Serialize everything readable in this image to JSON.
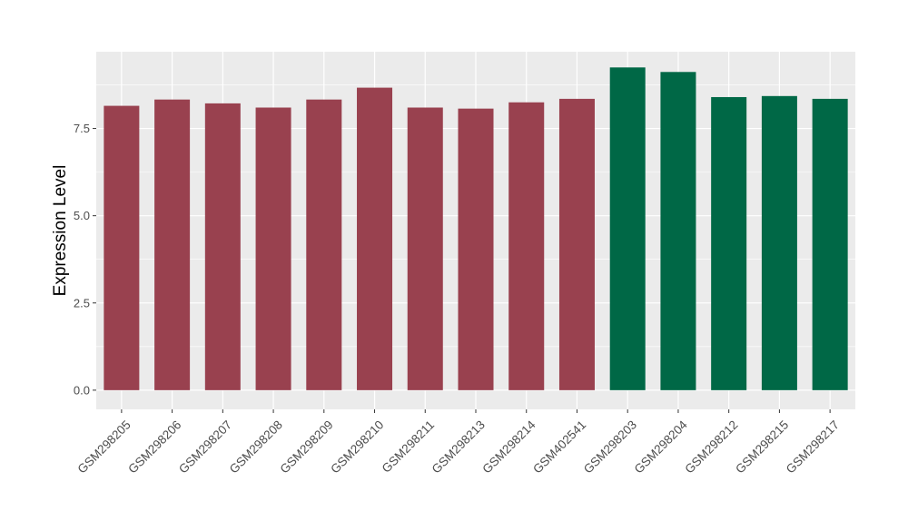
{
  "chart_data": {
    "type": "bar",
    "title": "",
    "xlabel": "",
    "ylabel": "Expression Level",
    "ylim": [
      -0.55,
      9.7
    ],
    "y_ticks": [
      0.0,
      2.5,
      5.0,
      7.5
    ],
    "y_tick_labels": [
      "0.0",
      "2.5",
      "5.0",
      "7.5"
    ],
    "grid": true,
    "legend": "none",
    "categories": [
      "GSM298205",
      "GSM298206",
      "GSM298207",
      "GSM298208",
      "GSM298209",
      "GSM298210",
      "GSM298211",
      "GSM298213",
      "GSM298214",
      "GSM402541",
      "GSM298203",
      "GSM298204",
      "GSM298212",
      "GSM298215",
      "GSM298217"
    ],
    "values": [
      8.15,
      8.33,
      8.22,
      8.1,
      8.33,
      8.67,
      8.1,
      8.07,
      8.25,
      8.35,
      9.25,
      9.12,
      8.4,
      8.43,
      8.35
    ],
    "bar_colors": [
      "#99414f",
      "#99414f",
      "#99414f",
      "#99414f",
      "#99414f",
      "#99414f",
      "#99414f",
      "#99414f",
      "#99414f",
      "#99414f",
      "#006846",
      "#006846",
      "#006846",
      "#006846",
      "#006846"
    ],
    "panel_background": "#ebebeb",
    "grid_color": "#ffffff"
  }
}
